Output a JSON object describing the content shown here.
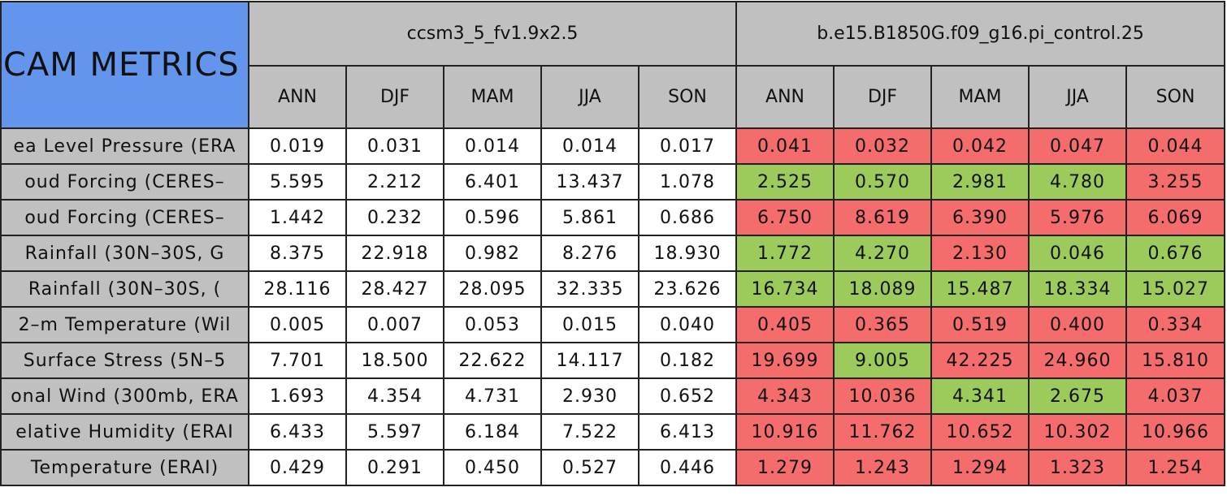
{
  "table": {
    "title": "CAM METRICS",
    "header_color": "#c0c0c0",
    "title_color": "#6495ed",
    "groups": [
      {
        "name": "ccsm3_5_fv1.9x2.5",
        "seasons": [
          "ANN",
          "DJF",
          "MAM",
          "JJA",
          "SON"
        ]
      },
      {
        "name": "b.e15.B1850G.f09_g16.pi_control.25",
        "seasons": [
          "ANN",
          "DJF",
          "MAM",
          "JJA",
          "SON"
        ]
      }
    ],
    "rows": [
      {
        "label": "ea Level Pressure (ERA",
        "values": [
          "0.019",
          "0.031",
          "0.014",
          "0.014",
          "0.017",
          "0.041",
          "0.032",
          "0.042",
          "0.047",
          "0.044"
        ],
        "colors": [
          "#ffffff",
          "#ffffff",
          "#ffffff",
          "#ffffff",
          "#ffffff",
          "#f46c6c",
          "#f46c6c",
          "#f46c6c",
          "#f46c6c",
          "#f46c6c"
        ]
      },
      {
        "label": "oud Forcing (CERES–",
        "values": [
          "5.595",
          "2.212",
          "6.401",
          "13.437",
          "1.078",
          "2.525",
          "0.570",
          "2.981",
          "4.780",
          "3.255"
        ],
        "colors": [
          "#ffffff",
          "#ffffff",
          "#ffffff",
          "#ffffff",
          "#ffffff",
          "#9ccb5c",
          "#9ccb5c",
          "#9ccb5c",
          "#9ccb5c",
          "#f46c6c"
        ]
      },
      {
        "label": "oud Forcing (CERES–",
        "values": [
          "1.442",
          "0.232",
          "0.596",
          "5.861",
          "0.686",
          "6.750",
          "8.619",
          "6.390",
          "5.976",
          "6.069"
        ],
        "colors": [
          "#ffffff",
          "#ffffff",
          "#ffffff",
          "#ffffff",
          "#ffffff",
          "#f46c6c",
          "#f46c6c",
          "#f46c6c",
          "#f46c6c",
          "#f46c6c"
        ]
      },
      {
        "label": "Rainfall (30N–30S, G",
        "values": [
          "8.375",
          "22.918",
          "0.982",
          "8.276",
          "18.930",
          "1.772",
          "4.270",
          "2.130",
          "0.046",
          "0.676"
        ],
        "colors": [
          "#ffffff",
          "#ffffff",
          "#ffffff",
          "#ffffff",
          "#ffffff",
          "#9ccb5c",
          "#9ccb5c",
          "#f46c6c",
          "#9ccb5c",
          "#9ccb5c"
        ]
      },
      {
        "label": "Rainfall (30N–30S, (",
        "values": [
          "28.116",
          "28.427",
          "28.095",
          "32.335",
          "23.626",
          "16.734",
          "18.089",
          "15.487",
          "18.334",
          "15.027"
        ],
        "colors": [
          "#ffffff",
          "#ffffff",
          "#ffffff",
          "#ffffff",
          "#ffffff",
          "#9ccb5c",
          "#9ccb5c",
          "#9ccb5c",
          "#9ccb5c",
          "#9ccb5c"
        ]
      },
      {
        "label": "2–m Temperature (Wil",
        "values": [
          "0.005",
          "0.007",
          "0.053",
          "0.015",
          "0.040",
          "0.405",
          "0.365",
          "0.519",
          "0.400",
          "0.334"
        ],
        "colors": [
          "#ffffff",
          "#ffffff",
          "#ffffff",
          "#ffffff",
          "#ffffff",
          "#f46c6c",
          "#f46c6c",
          "#f46c6c",
          "#f46c6c",
          "#f46c6c"
        ]
      },
      {
        "label": "Surface Stress (5N–5",
        "values": [
          "7.701",
          "18.500",
          "22.622",
          "14.117",
          "0.182",
          "19.699",
          "9.005",
          "42.225",
          "24.960",
          "15.810"
        ],
        "colors": [
          "#ffffff",
          "#ffffff",
          "#ffffff",
          "#ffffff",
          "#ffffff",
          "#f46c6c",
          "#9ccb5c",
          "#f46c6c",
          "#f46c6c",
          "#f46c6c"
        ]
      },
      {
        "label": "onal Wind (300mb, ERA",
        "values": [
          "1.693",
          "4.354",
          "4.731",
          "2.930",
          "0.652",
          "4.343",
          "10.036",
          "4.341",
          "2.675",
          "4.037"
        ],
        "colors": [
          "#ffffff",
          "#ffffff",
          "#ffffff",
          "#ffffff",
          "#ffffff",
          "#f46c6c",
          "#f46c6c",
          "#9ccb5c",
          "#9ccb5c",
          "#f46c6c"
        ]
      },
      {
        "label": "elative Humidity (ERAI",
        "values": [
          "6.433",
          "5.597",
          "6.184",
          "7.522",
          "6.413",
          "10.916",
          "11.762",
          "10.652",
          "10.302",
          "10.966"
        ],
        "colors": [
          "#ffffff",
          "#ffffff",
          "#ffffff",
          "#ffffff",
          "#ffffff",
          "#f46c6c",
          "#f46c6c",
          "#f46c6c",
          "#f46c6c",
          "#f46c6c"
        ]
      },
      {
        "label": "Temperature (ERAI)",
        "values": [
          "0.429",
          "0.291",
          "0.450",
          "0.527",
          "0.446",
          "1.279",
          "1.243",
          "1.294",
          "1.323",
          "1.254"
        ],
        "colors": [
          "#ffffff",
          "#ffffff",
          "#ffffff",
          "#ffffff",
          "#ffffff",
          "#f46c6c",
          "#f46c6c",
          "#f46c6c",
          "#f46c6c",
          "#f46c6c"
        ]
      }
    ]
  }
}
